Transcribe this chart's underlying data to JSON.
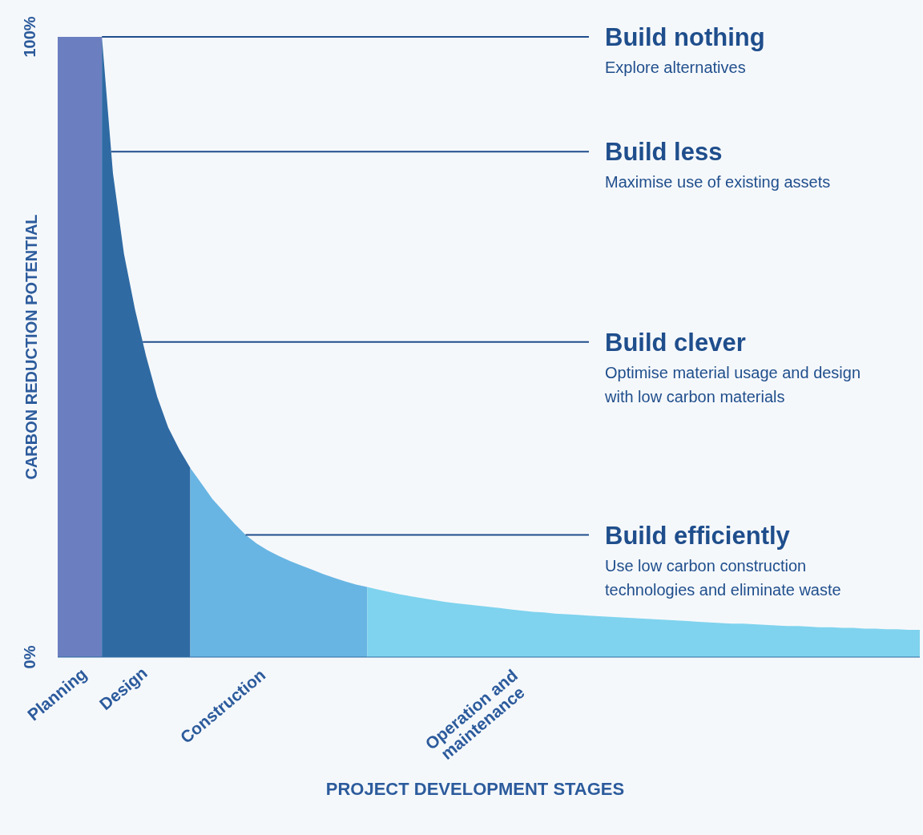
{
  "chart_data": {
    "type": "area",
    "xlabel": "PROJECT DEVELOPMENT STAGES",
    "ylabel": "CARBON REDUCTION POTENTIAL",
    "ylim": [
      0,
      100
    ],
    "yticks": [
      {
        "value": 0,
        "label": "0%"
      },
      {
        "value": 100,
        "label": "100%"
      }
    ],
    "categories": [
      "Planning",
      null,
      null,
      null,
      null,
      null,
      "Design",
      null,
      null,
      null,
      null,
      null,
      null,
      null,
      null,
      "Construction",
      null,
      null,
      null,
      null,
      null,
      null,
      null,
      null,
      null,
      null,
      null,
      null,
      null,
      null,
      null,
      null,
      null,
      null,
      null,
      null,
      null,
      null,
      "Operation and maintenance",
      null,
      null,
      null,
      null,
      null,
      null,
      null,
      null,
      null,
      null,
      null,
      null,
      null,
      null,
      null,
      null,
      null,
      null,
      null,
      null,
      null,
      null,
      null,
      null,
      null,
      null,
      null,
      null,
      null,
      null,
      null,
      null,
      null,
      null,
      null,
      null,
      null,
      null,
      null,
      null
    ],
    "series": [
      {
        "color": "#6b7fc0",
        "values": [
          100,
          100,
          100,
          100,
          100,
          null,
          null,
          null,
          null,
          null,
          null,
          null,
          null,
          null,
          null,
          null,
          null,
          null,
          null,
          null,
          null,
          null,
          null,
          null,
          null,
          null,
          null,
          null,
          null,
          null,
          null,
          null,
          null,
          null,
          null,
          null,
          null,
          null,
          null,
          null,
          null,
          null,
          null,
          null,
          null,
          null,
          null,
          null,
          null,
          null,
          null,
          null,
          null,
          null,
          null,
          null,
          null,
          null,
          null,
          null,
          null,
          null,
          null,
          null,
          null,
          null,
          null,
          null,
          null,
          null,
          null,
          null,
          null,
          null,
          null,
          null,
          null,
          null,
          null
        ]
      },
      {
        "color": "#2f6aa3",
        "values": [
          null,
          null,
          null,
          null,
          100,
          78,
          65,
          56,
          48.5,
          42,
          37,
          33.5,
          30.5,
          null,
          null,
          null,
          null,
          null,
          null,
          null,
          null,
          null,
          null,
          null,
          null,
          null,
          null,
          null,
          null,
          null,
          null,
          null,
          null,
          null,
          null,
          null,
          null,
          null,
          null,
          null,
          null,
          null,
          null,
          null,
          null,
          null,
          null,
          null,
          null,
          null,
          null,
          null,
          null,
          null,
          null,
          null,
          null,
          null,
          null,
          null,
          null,
          null,
          null,
          null,
          null,
          null,
          null,
          null,
          null,
          null,
          null,
          null,
          null,
          null,
          null,
          null,
          null,
          null,
          null
        ]
      },
      {
        "color": "#68b5e3",
        "values": [
          null,
          null,
          null,
          null,
          null,
          null,
          null,
          null,
          null,
          null,
          null,
          null,
          30.5,
          28,
          25.5,
          23.5,
          21.5,
          19.7,
          18.3,
          17.2,
          16.3,
          15.5,
          14.8,
          14.1,
          13.4,
          12.8,
          12.2,
          11.7,
          11.3,
          null,
          null,
          null,
          null,
          null,
          null,
          null,
          null,
          null,
          null,
          null,
          null,
          null,
          null,
          null,
          null,
          null,
          null,
          null,
          null,
          null,
          null,
          null,
          null,
          null,
          null,
          null,
          null,
          null,
          null,
          null,
          null,
          null,
          null,
          null,
          null,
          null,
          null,
          null,
          null,
          null,
          null,
          null,
          null,
          null,
          null,
          null,
          null,
          null,
          null
        ]
      },
      {
        "color": "#7fd3ee",
        "values": [
          null,
          null,
          null,
          null,
          null,
          null,
          null,
          null,
          null,
          null,
          null,
          null,
          null,
          null,
          null,
          null,
          null,
          null,
          null,
          null,
          null,
          null,
          null,
          null,
          null,
          null,
          null,
          null,
          11.3,
          10.9,
          10.5,
          10.1,
          9.8,
          9.5,
          9.2,
          8.9,
          8.7,
          8.5,
          8.3,
          8.1,
          7.9,
          7.7,
          7.5,
          7.3,
          7.2,
          7.0,
          6.9,
          6.8,
          6.7,
          6.6,
          6.5,
          6.4,
          6.3,
          6.2,
          6.1,
          6.0,
          5.9,
          5.8,
          5.7,
          5.6,
          5.5,
          5.4,
          5.4,
          5.3,
          5.2,
          5.1,
          5.0,
          5.0,
          4.9,
          4.8,
          4.8,
          4.7,
          4.7,
          4.6,
          4.6,
          4.5,
          4.5,
          4.4,
          4.4
        ]
      }
    ],
    "ref_lines": [
      {
        "axis": "y",
        "value": 100,
        "label": "Build nothing\nExplore alternatives",
        "color": "#1f4e8c"
      },
      {
        "axis": "y",
        "value": 81.5,
        "label": "Build less\nMaximise use of existing assets",
        "color": "#1f4e8c"
      },
      {
        "axis": "y",
        "value": 50.8,
        "label": "Build clever\nOptimise material usage and design\nwith low carbon materials",
        "color": "#1f4e8c"
      },
      {
        "axis": "y",
        "value": 19.7,
        "label": "Build efficiently\nUse low carbon construction\ntechnologies and eliminate waste",
        "color": "#1f4e8c"
      }
    ]
  }
}
